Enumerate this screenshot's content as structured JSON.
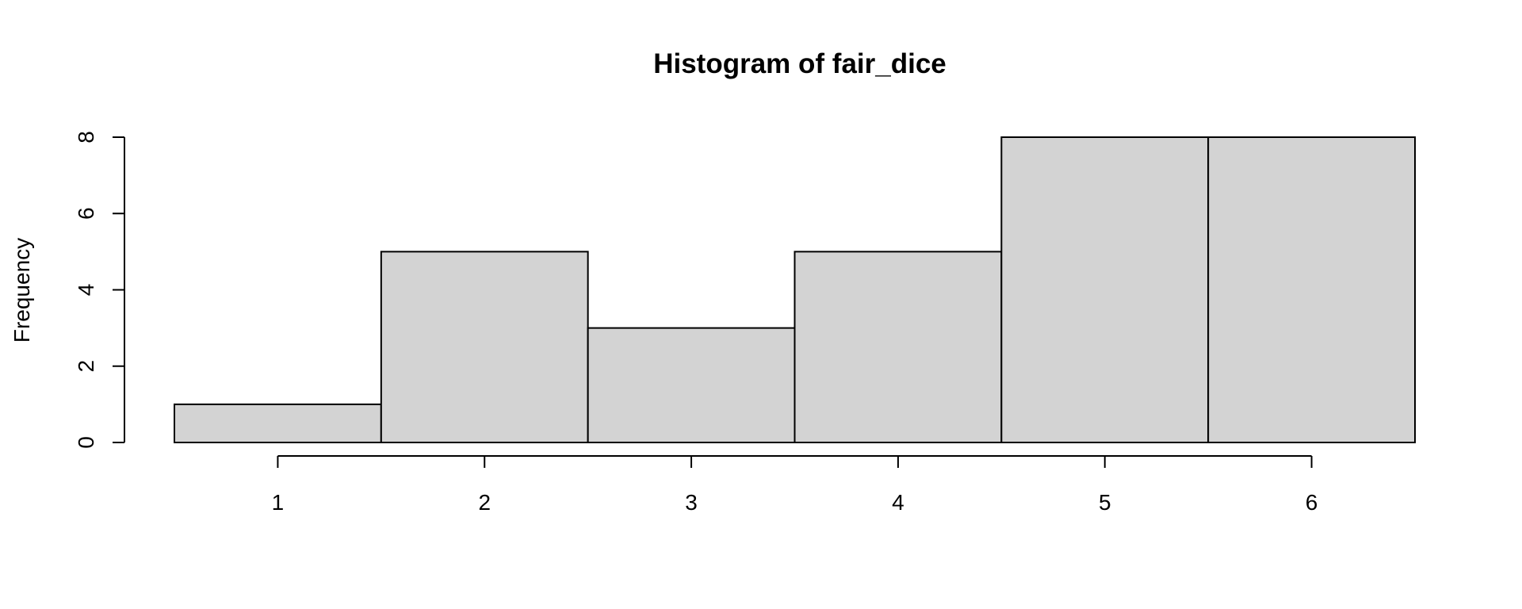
{
  "chart_data": {
    "type": "bar",
    "title": "Histogram of fair_dice",
    "xlabel": "",
    "ylabel": "Frequency",
    "categories": [
      "1",
      "2",
      "3",
      "4",
      "5",
      "6"
    ],
    "values": [
      1,
      5,
      3,
      5,
      8,
      8
    ],
    "xlim": [
      0.5,
      6.5
    ],
    "ylim": [
      0,
      8
    ],
    "yticks": [
      0,
      2,
      4,
      6,
      8
    ],
    "xticks": [
      1,
      2,
      3,
      4,
      5,
      6
    ],
    "bar_color": "#d3d3d3",
    "edge_color": "#000000",
    "grid": false,
    "legend": "none"
  }
}
